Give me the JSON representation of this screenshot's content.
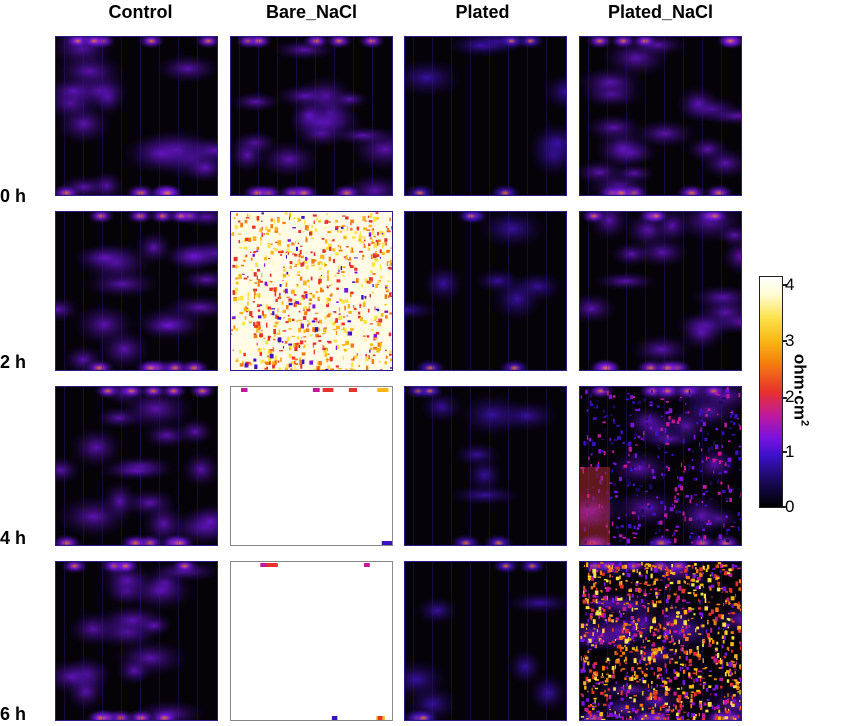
{
  "columns": [
    "Control",
    "Bare_NaCl",
    "Plated",
    "Plated_NaCl"
  ],
  "rows": [
    "0 h",
    "2 h",
    "4 h",
    "6 h"
  ],
  "colorbar": {
    "unit_text": "ohm·cm",
    "unit_sup": "2",
    "ticks": [
      "4",
      "3",
      "2",
      "1",
      "0"
    ],
    "min": 0,
    "max": 4,
    "colormap": "black-purple-red-orange-yellow-white"
  },
  "tiles": {
    "Control": [
      "medium",
      "medium",
      "medium",
      "medium"
    ],
    "Bare_NaCl": [
      "medium",
      "high",
      "saturated",
      "saturated"
    ],
    "Plated": [
      "low",
      "low",
      "low",
      "low"
    ],
    "Plated_NaCl": [
      "medium",
      "medium",
      "medium-high",
      "high"
    ]
  }
}
